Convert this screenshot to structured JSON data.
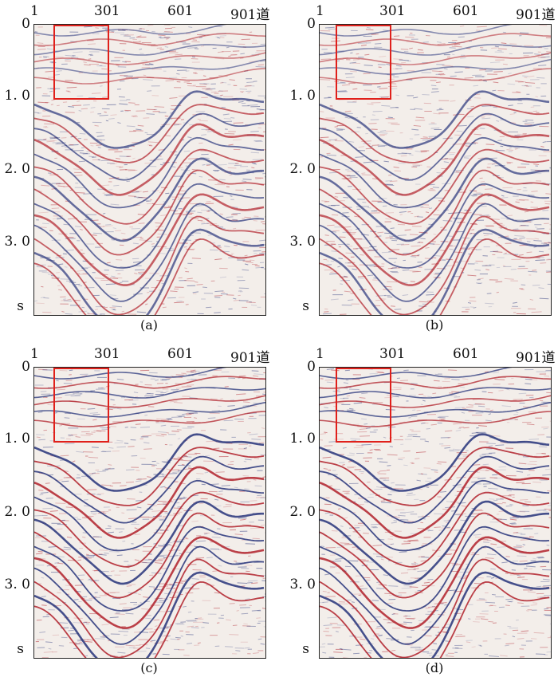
{
  "x_ticks": [
    "1",
    "301",
    "601",
    "901道"
  ],
  "y_ticks": [
    "0",
    "1. 0",
    "2. 0",
    "3. 0"
  ],
  "y_unit": "s",
  "panels": [
    {
      "caption": "(a)"
    },
    {
      "caption": "(b)"
    },
    {
      "caption": "(c)"
    },
    {
      "caption": "(d)"
    }
  ],
  "colors": {
    "positive": "#b0202a",
    "negative": "#26337a",
    "roi": "#e0201b",
    "background": "#f3eeea"
  }
}
